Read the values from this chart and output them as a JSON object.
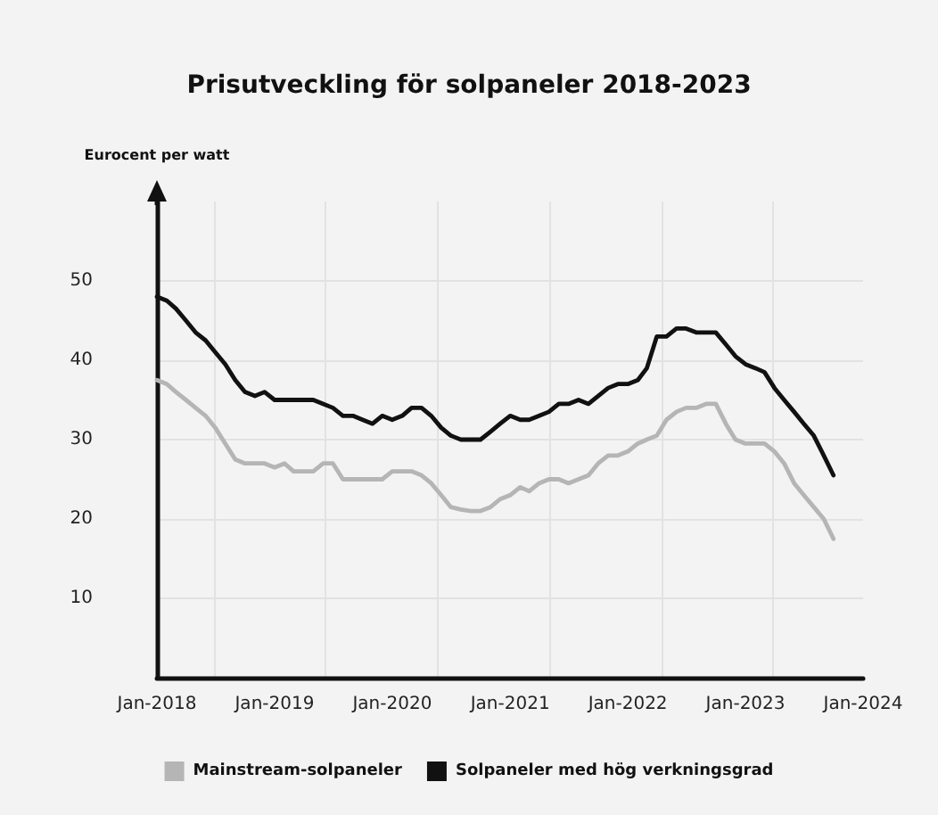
{
  "chart_data": {
    "type": "line",
    "title": "Prisutveckling för solpaneler 2018-2023",
    "ylabel": "Eurocent per watt",
    "x": [
      "2018-01",
      "2018-02",
      "2018-03",
      "2018-04",
      "2018-05",
      "2018-06",
      "2018-07",
      "2018-08",
      "2018-09",
      "2018-10",
      "2018-11",
      "2018-12",
      "2019-01",
      "2019-02",
      "2019-03",
      "2019-04",
      "2019-05",
      "2019-06",
      "2019-07",
      "2019-08",
      "2019-09",
      "2019-10",
      "2019-11",
      "2019-12",
      "2020-01",
      "2020-02",
      "2020-03",
      "2020-04",
      "2020-05",
      "2020-06",
      "2020-07",
      "2020-08",
      "2020-09",
      "2020-10",
      "2020-11",
      "2020-12",
      "2021-01",
      "2021-02",
      "2021-03",
      "2021-04",
      "2021-05",
      "2021-06",
      "2021-07",
      "2021-08",
      "2021-09",
      "2021-10",
      "2021-11",
      "2021-12",
      "2022-01",
      "2022-02",
      "2022-03",
      "2022-04",
      "2022-05",
      "2022-06",
      "2022-07",
      "2022-08",
      "2022-09",
      "2022-10",
      "2022-11",
      "2022-12",
      "2023-01",
      "2023-02",
      "2023-03",
      "2023-04",
      "2023-05",
      "2023-06",
      "2023-07",
      "2023-08",
      "2023-09",
      "2023-10"
    ],
    "series": [
      {
        "name": "Mainstream-solpaneler",
        "color": "#b5b5b5",
        "values": [
          37.5,
          37,
          36,
          35,
          34,
          33,
          31.5,
          29.5,
          27.5,
          27,
          27,
          27,
          26.5,
          27,
          26,
          26,
          26,
          27,
          27,
          25,
          25,
          25,
          25,
          25,
          26,
          26,
          26,
          25.5,
          24.5,
          23,
          21.5,
          21.2,
          21,
          21,
          21.5,
          22.5,
          23,
          24,
          23.5,
          24.5,
          25,
          25,
          24.5,
          25,
          25.5,
          27,
          28,
          28,
          28.5,
          29.5,
          30,
          30.5,
          32.5,
          33.5,
          34,
          34,
          34.5,
          34.5,
          32,
          30,
          29.5,
          29.5,
          29.5,
          28.5,
          27,
          24.5,
          23,
          21.5,
          20,
          17.5
        ]
      },
      {
        "name": "Solpaneler med hög verkningsgrad",
        "color": "#111111",
        "values": [
          48,
          47.5,
          46.5,
          45,
          43.5,
          42.5,
          41,
          39.5,
          37.5,
          36,
          35.5,
          36,
          35,
          35,
          35,
          35,
          35,
          34.5,
          34,
          33,
          33,
          32.5,
          32,
          33,
          32.5,
          33,
          34,
          34,
          33,
          31.5,
          30.5,
          30,
          30,
          30,
          31,
          32,
          33,
          32.5,
          32.5,
          33,
          33.5,
          34.5,
          34.5,
          35,
          34.5,
          35.5,
          36.5,
          37,
          37,
          37.5,
          39,
          43,
          43,
          44,
          44,
          43.5,
          43.5,
          43.5,
          42,
          40.5,
          39.5,
          39,
          38.5,
          36.5,
          35,
          33.5,
          32,
          30.5,
          28,
          25.5
        ]
      }
    ],
    "xlim": [
      "2018-01",
      "2024-01"
    ],
    "xticks": [
      {
        "value": "2018-01",
        "label": "Jan-2018"
      },
      {
        "value": "2019-01",
        "label": "Jan-2019"
      },
      {
        "value": "2020-01",
        "label": "Jan-2020"
      },
      {
        "value": "2021-01",
        "label": "Jan-2021"
      },
      {
        "value": "2022-01",
        "label": "Jan-2022"
      },
      {
        "value": "2023-01",
        "label": "Jan-2023"
      },
      {
        "value": "2024-01",
        "label": "Jan-2024"
      }
    ],
    "ylim": [
      0,
      60
    ],
    "yticks": [
      10,
      20,
      30,
      40,
      50
    ],
    "grid": true,
    "legend": "bottom",
    "marker": "none",
    "line_style": "solid"
  }
}
